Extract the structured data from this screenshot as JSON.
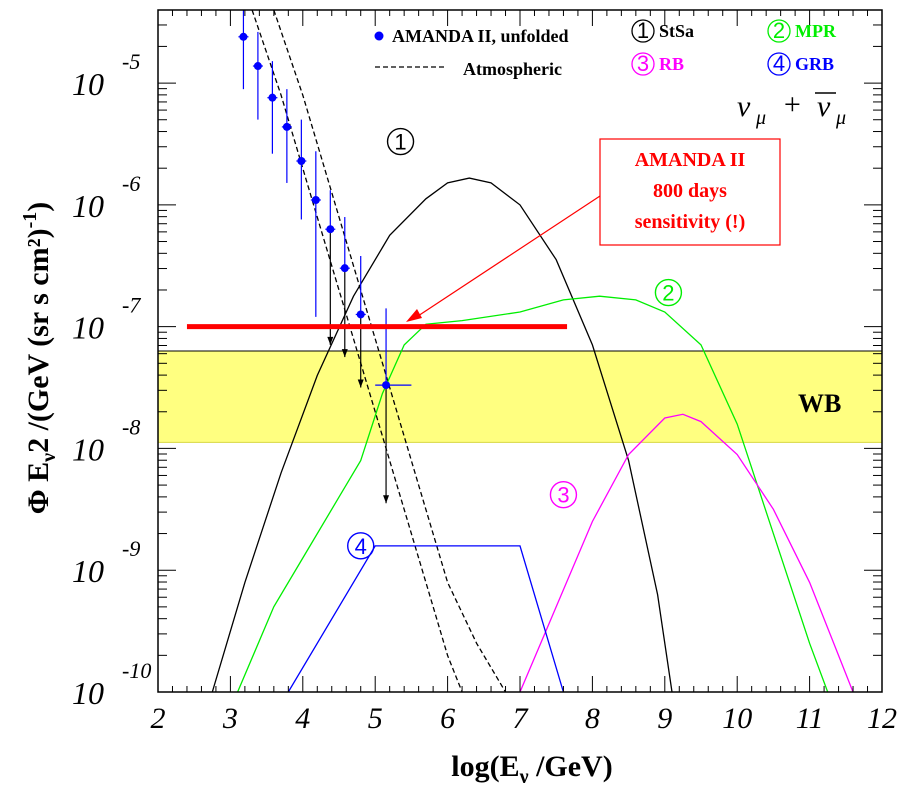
{
  "chart_data": {
    "type": "line",
    "xlabel_main": "log(E",
    "xlabel_sub": "ν",
    "xlabel_tail": " /GeV)",
    "ylabel_main": "Φ E",
    "ylabel_sub": "ν",
    "ylabel_tail": "2 /(GeV (sr s cm²)",
    "ylabel_exp": "-1",
    "ylabel_close": ")",
    "xlim": [
      2,
      12
    ],
    "ylim_log10": [
      -10,
      -4.4
    ],
    "x_ticks": [
      "2",
      "3",
      "4",
      "5",
      "6",
      "7",
      "8",
      "9",
      "10",
      "11",
      "12"
    ],
    "y_ticks": [
      {
        "base": "10",
        "exp": "-5",
        "value": -5
      },
      {
        "base": "10",
        "exp": "-6",
        "value": -6
      },
      {
        "base": "10",
        "exp": "-7",
        "value": -7
      },
      {
        "base": "10",
        "exp": "-8",
        "value": -8
      },
      {
        "base": "10",
        "exp": "-9",
        "value": -9
      },
      {
        "base": "10",
        "exp": "-10",
        "value": -10
      }
    ],
    "wb_band": {
      "label": "WB",
      "log_low": -7.95,
      "log_high": -7.2,
      "color": "#ffff80"
    },
    "sensitivity": {
      "x_start": 2.4,
      "x_end": 7.65,
      "log_y": -7.0,
      "color": "#ff0000"
    },
    "amanda_points": [
      {
        "x": 3.18,
        "y": -4.62,
        "err_lo": -5.05,
        "err_hi": -4.4
      },
      {
        "x": 3.38,
        "y": -4.86,
        "err_lo": -5.3,
        "err_hi": -4.58
      },
      {
        "x": 3.58,
        "y": -5.12,
        "err_lo": -5.58,
        "err_hi": -4.82
      },
      {
        "x": 3.78,
        "y": -5.36,
        "err_lo": -5.82,
        "err_hi": -5.05
      },
      {
        "x": 3.98,
        "y": -5.64,
        "err_lo": -6.12,
        "err_hi": -5.3
      },
      {
        "x": 4.18,
        "y": -5.96,
        "err_lo": -6.92,
        "err_hi": -5.56
      },
      {
        "x": 4.38,
        "y": -6.2,
        "err_lo": -7.15,
        "err_hi": -5.88,
        "arrow": true
      },
      {
        "x": 4.58,
        "y": -6.52,
        "err_lo": -7.25,
        "err_hi": -6.1,
        "arrow": true
      },
      {
        "x": 4.8,
        "y": -6.9,
        "err_lo": -7.5,
        "err_hi": -6.42,
        "arrow": true
      },
      {
        "x": 5.15,
        "y": -7.48,
        "err_lo": -8.45,
        "err_hi": -6.85,
        "arrow": true,
        "xerr": [
          5.0,
          5.5
        ]
      }
    ],
    "series": [
      {
        "name": "Atmospheric",
        "color": "#000000",
        "dashed": true,
        "x": [
          3.3,
          3.7,
          4.1,
          4.5,
          4.9,
          5.3,
          5.7,
          6.0,
          6.2
        ],
        "y": [
          -4.4,
          -5.1,
          -5.9,
          -6.7,
          -7.5,
          -8.3,
          -9.1,
          -9.7,
          -10.0
        ]
      },
      {
        "name": "Atmospheric-upper",
        "color": "#000000",
        "dashed": true,
        "x": [
          3.6,
          4.0,
          4.4,
          4.8,
          5.2,
          5.6,
          6.0,
          6.4,
          6.8
        ],
        "y": [
          -4.4,
          -5.1,
          -5.9,
          -6.7,
          -7.5,
          -8.3,
          -9.1,
          -9.6,
          -10.0
        ]
      },
      {
        "name": "StSa",
        "color": "#000000",
        "dashed": false,
        "x": [
          2.75,
          3.2,
          3.7,
          4.2,
          4.7,
          5.2,
          5.7,
          6.0,
          6.3,
          6.6,
          7.0,
          7.5,
          8.0,
          8.5,
          8.9,
          9.1
        ],
        "y": [
          -10.0,
          -9.1,
          -8.2,
          -7.4,
          -6.75,
          -6.25,
          -5.95,
          -5.82,
          -5.78,
          -5.82,
          -6.0,
          -6.45,
          -7.15,
          -8.1,
          -9.2,
          -10.0
        ]
      },
      {
        "name": "MPR",
        "color": "#00ee00",
        "dashed": false,
        "x": [
          3.1,
          3.6,
          4.0,
          4.5,
          4.8,
          5.1,
          5.4,
          5.7,
          6.2,
          7.0,
          7.6,
          8.1,
          8.6,
          9.0,
          9.5,
          10.0,
          10.5,
          11.0,
          11.25
        ],
        "y": [
          -10.0,
          -9.3,
          -8.9,
          -8.4,
          -8.1,
          -7.55,
          -7.15,
          -6.98,
          -6.95,
          -6.88,
          -6.78,
          -6.75,
          -6.78,
          -6.88,
          -7.15,
          -7.8,
          -8.7,
          -9.6,
          -10.0
        ]
      },
      {
        "name": "RB",
        "color": "#ff00ff",
        "dashed": false,
        "x": [
          7.0,
          7.5,
          8.0,
          8.5,
          9.0,
          9.25,
          9.5,
          10.0,
          10.5,
          11.0,
          11.5,
          11.6
        ],
        "y": [
          -10.0,
          -9.3,
          -8.6,
          -8.05,
          -7.75,
          -7.72,
          -7.78,
          -8.05,
          -8.5,
          -9.1,
          -9.85,
          -10.0
        ]
      },
      {
        "name": "GRB",
        "color": "#0000ff",
        "dashed": false,
        "x": [
          3.8,
          5.0,
          7.0,
          7.6
        ],
        "y": [
          -10.0,
          -8.8,
          -8.8,
          -10.0
        ]
      }
    ],
    "legend": {
      "amanda_label": "AMANDA II, unfolded",
      "atm_label": "Atmospheric",
      "items": [
        {
          "num": "1",
          "label": "StSa",
          "color": "#000000"
        },
        {
          "num": "2",
          "label": "MPR",
          "color": "#00ee00"
        },
        {
          "num": "3",
          "label": "RB",
          "color": "#ff00ff"
        },
        {
          "num": "4",
          "label": "GRB",
          "color": "#0000ff"
        }
      ],
      "numu_left": "ν",
      "numu_sub": "μ",
      "numu_plus": "+"
    },
    "annotation": {
      "lines": [
        "AMANDA II",
        "800 days",
        "sensitivity (!)"
      ],
      "color": "#ff0000"
    },
    "curve_labels": [
      {
        "num": "1",
        "x": 5.35,
        "y": -5.48,
        "color": "#000000"
      },
      {
        "num": "2",
        "x": 9.05,
        "y": -6.72,
        "color": "#00ee00"
      },
      {
        "num": "3",
        "x": 7.6,
        "y": -8.38,
        "color": "#ff00ff"
      },
      {
        "num": "4",
        "x": 4.8,
        "y": -8.8,
        "color": "#0000ff"
      }
    ]
  }
}
